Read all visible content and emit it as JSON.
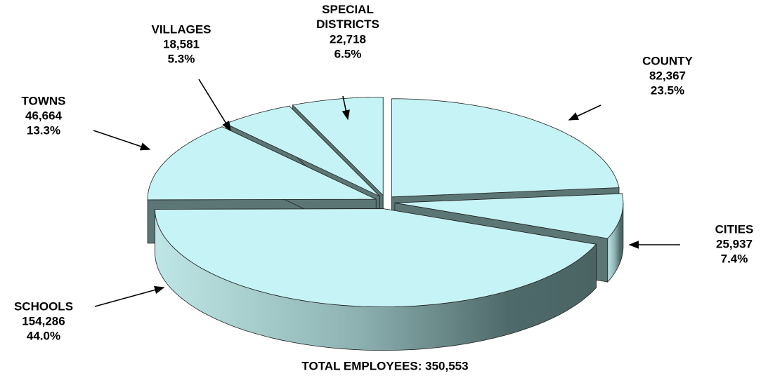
{
  "chart_data": {
    "type": "pie",
    "title": "TOTAL EMPLOYEES: 350,553",
    "categories": [
      "COUNTY",
      "CITIES",
      "SCHOOLS",
      "TOWNS",
      "VILLAGES",
      "SPECIAL DISTRICTS"
    ],
    "values": [
      82367,
      25937,
      154286,
      46664,
      18581,
      22718
    ],
    "value_labels": [
      "82,367",
      "25,937",
      "154,286",
      "46,664",
      "18,581",
      "22,718"
    ],
    "percents": [
      23.5,
      7.4,
      44.0,
      13.3,
      5.3,
      6.5
    ],
    "percent_labels": [
      "23.5%",
      "7.4%",
      "44.0%",
      "13.3%",
      "5.3%",
      "6.5%"
    ],
    "color": "#c6f4f6"
  }
}
